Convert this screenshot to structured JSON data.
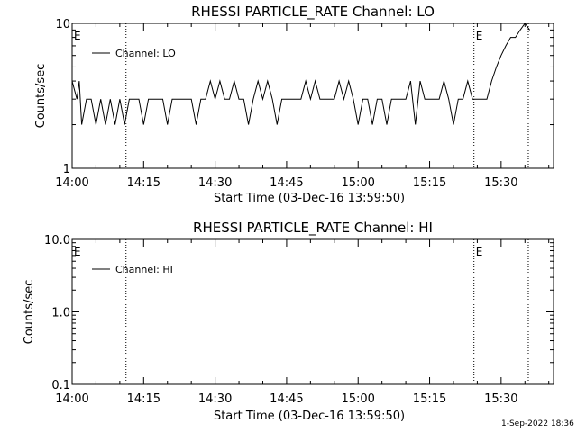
{
  "footer_timestamp": "1-Sep-2022 18:36",
  "chart_data": [
    {
      "type": "line",
      "title": "RHESSI PARTICLE_RATE Channel: LO",
      "xlabel": "Start Time (03-Dec-16 13:59:50)",
      "ylabel": "Counts/sec",
      "y_scale": "log",
      "ylim": [
        1,
        10
      ],
      "y_ticks": [
        "1",
        "10"
      ],
      "x_ticks": [
        "14:00",
        "14:15",
        "14:30",
        "14:45",
        "15:00",
        "15:15",
        "15:30"
      ],
      "x_tick_minutes": [
        0,
        15,
        30,
        45,
        60,
        75,
        90
      ],
      "xlim_minutes": [
        0,
        101
      ],
      "legend": "Channel: LO",
      "legend_position": "top-left",
      "event_lines_minutes": [
        11.3,
        84.3,
        95.7
      ],
      "event_markers": [
        {
          "label": "E",
          "minute": 0
        },
        {
          "label": "E",
          "minute": 84.3
        }
      ],
      "series": [
        {
          "name": "Channel: LO",
          "x_minutes": [
            0,
            1,
            1.5,
            2,
            3,
            4,
            5,
            6,
            7,
            8,
            9,
            10,
            11,
            12,
            13,
            14,
            15,
            16,
            17,
            18,
            19,
            20,
            21,
            22,
            23,
            24,
            25,
            26,
            27,
            28,
            29,
            30,
            31,
            32,
            33,
            34,
            35,
            36,
            37,
            38,
            39,
            40,
            41,
            42,
            43,
            44,
            45,
            46,
            47,
            48,
            49,
            50,
            51,
            52,
            53,
            54,
            55,
            56,
            57,
            58,
            59,
            60,
            61,
            62,
            63,
            64,
            65,
            66,
            67,
            68,
            69,
            70,
            71,
            72,
            73,
            74,
            75,
            76,
            77,
            78,
            79,
            80,
            81,
            82,
            83,
            84,
            85,
            86,
            87,
            88,
            89,
            90,
            91,
            92,
            93,
            94,
            95,
            96
          ],
          "values": [
            4,
            3,
            4,
            2,
            3,
            3,
            2,
            3,
            2,
            3,
            2,
            3,
            2,
            3,
            3,
            3,
            2,
            3,
            3,
            3,
            3,
            2,
            3,
            3,
            3,
            3,
            3,
            2,
            3,
            3,
            4,
            3,
            4,
            3,
            3,
            4,
            3,
            3,
            2,
            3,
            4,
            3,
            4,
            3,
            2,
            3,
            3,
            3,
            3,
            3,
            4,
            3,
            4,
            3,
            3,
            3,
            3,
            4,
            3,
            4,
            3,
            2,
            3,
            3,
            2,
            3,
            3,
            2,
            3,
            3,
            3,
            3,
            4,
            2,
            4,
            3,
            3,
            3,
            3,
            4,
            3,
            2,
            3,
            3,
            4,
            3,
            3,
            3,
            3,
            4,
            5,
            6,
            7,
            8,
            8,
            9,
            10,
            9
          ]
        }
      ]
    },
    {
      "type": "line",
      "title": "RHESSI PARTICLE_RATE Channel: HI",
      "xlabel": "Start Time (03-Dec-16 13:59:50)",
      "ylabel": "Counts/sec",
      "y_scale": "log",
      "ylim": [
        0.1,
        10
      ],
      "y_ticks": [
        "0.1",
        "1.0",
        "10.0"
      ],
      "x_ticks": [
        "14:00",
        "14:15",
        "14:30",
        "14:45",
        "15:00",
        "15:15",
        "15:30"
      ],
      "x_tick_minutes": [
        0,
        15,
        30,
        45,
        60,
        75,
        90
      ],
      "xlim_minutes": [
        0,
        101
      ],
      "legend": "Channel: HI",
      "legend_position": "top-left",
      "event_lines_minutes": [
        11.3,
        84.3,
        95.7
      ],
      "event_markers": [
        {
          "label": "E",
          "minute": 0
        },
        {
          "label": "E",
          "minute": 84.3
        }
      ],
      "series": [
        {
          "name": "Channel: HI",
          "x_minutes": [],
          "values": []
        }
      ]
    }
  ]
}
